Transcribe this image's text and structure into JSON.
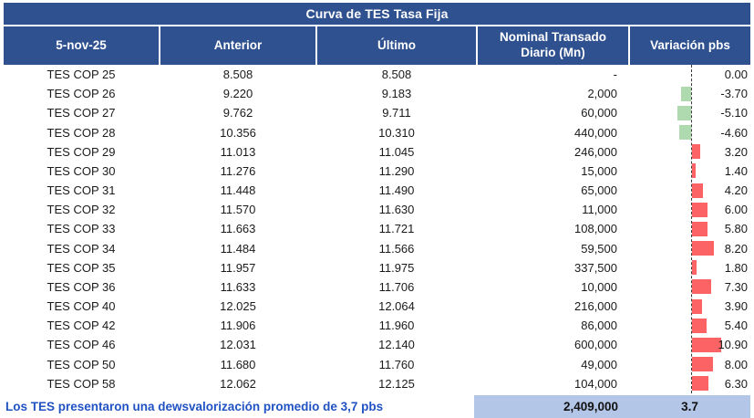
{
  "header": {
    "title": "Curva de TES Tasa Fija",
    "columns": [
      {
        "id": "bond",
        "label": "5-nov-25"
      },
      {
        "id": "anterior",
        "label": "Anterior"
      },
      {
        "id": "ultimo",
        "label": "Último"
      },
      {
        "id": "nominal",
        "label": "Nominal Transado Diario (Mn)"
      },
      {
        "id": "variacion",
        "label": "Variación pbs"
      }
    ]
  },
  "rows": [
    {
      "bond": "TES COP 25",
      "anterior": "8.508",
      "ultimo": "8.508",
      "nominal": "-",
      "variacion_label": "0.00",
      "variacion": 0.0
    },
    {
      "bond": "TES COP 26",
      "anterior": "9.220",
      "ultimo": "9.183",
      "nominal": "2,000",
      "variacion_label": "-3.70",
      "variacion": -3.7
    },
    {
      "bond": "TES COP 27",
      "anterior": "9.762",
      "ultimo": "9.711",
      "nominal": "60,000",
      "variacion_label": "-5.10",
      "variacion": -5.1
    },
    {
      "bond": "TES COP 28",
      "anterior": "10.356",
      "ultimo": "10.310",
      "nominal": "440,000",
      "variacion_label": "-4.60",
      "variacion": -4.6
    },
    {
      "bond": "TES COP 29",
      "anterior": "11.013",
      "ultimo": "11.045",
      "nominal": "246,000",
      "variacion_label": "3.20",
      "variacion": 3.2
    },
    {
      "bond": "TES COP 30",
      "anterior": "11.276",
      "ultimo": "11.290",
      "nominal": "15,000",
      "variacion_label": "1.40",
      "variacion": 1.4
    },
    {
      "bond": "TES COP 31",
      "anterior": "11.448",
      "ultimo": "11.490",
      "nominal": "65,000",
      "variacion_label": "4.20",
      "variacion": 4.2
    },
    {
      "bond": "TES COP 32",
      "anterior": "11.570",
      "ultimo": "11.630",
      "nominal": "11,000",
      "variacion_label": "6.00",
      "variacion": 6.0
    },
    {
      "bond": "TES COP 33",
      "anterior": "11.663",
      "ultimo": "11.721",
      "nominal": "108,000",
      "variacion_label": "5.80",
      "variacion": 5.8
    },
    {
      "bond": "TES COP 34",
      "anterior": "11.484",
      "ultimo": "11.566",
      "nominal": "59,500",
      "variacion_label": "8.20",
      "variacion": 8.2
    },
    {
      "bond": "TES COP 35",
      "anterior": "11.957",
      "ultimo": "11.975",
      "nominal": "337,500",
      "variacion_label": "1.80",
      "variacion": 1.8
    },
    {
      "bond": "TES COP 36",
      "anterior": "11.633",
      "ultimo": "11.706",
      "nominal": "10,000",
      "variacion_label": "7.30",
      "variacion": 7.3
    },
    {
      "bond": "TES COP 40",
      "anterior": "12.025",
      "ultimo": "12.064",
      "nominal": "216,000",
      "variacion_label": "3.90",
      "variacion": 3.9
    },
    {
      "bond": "TES COP 42",
      "anterior": "11.906",
      "ultimo": "11.960",
      "nominal": "86,000",
      "variacion_label": "5.40",
      "variacion": 5.4
    },
    {
      "bond": "TES COP 46",
      "anterior": "12.031",
      "ultimo": "12.140",
      "nominal": "600,000",
      "variacion_label": "10.90",
      "variacion": 10.9
    },
    {
      "bond": "TES COP 50",
      "anterior": "11.680",
      "ultimo": "11.760",
      "nominal": "49,000",
      "variacion_label": "8.00",
      "variacion": 8.0
    },
    {
      "bond": "TES COP 58",
      "anterior": "12.062",
      "ultimo": "12.125",
      "nominal": "104,000",
      "variacion_label": "6.30",
      "variacion": 6.3
    }
  ],
  "footer": {
    "note": "Los TES presentaron una dewsvalorización promedio de 3,7 pbs",
    "total_nominal": "2,409,000",
    "avg_variacion": "3.7"
  },
  "colors": {
    "header_bg": "#2F5190",
    "bar_positive": "#FB6364",
    "bar_negative": "#AFD9AF",
    "footer_band_bg": "#B4C6E7",
    "footer_note_text": "#2052C4"
  },
  "chart_data": {
    "type": "table",
    "title": "Curva de TES Tasa Fija",
    "date_label": "5-nov-25",
    "columns": [
      "5-nov-25",
      "Anterior",
      "Último",
      "Nominal Transado Diario (Mn)",
      "Variación pbs"
    ],
    "rows": [
      [
        "TES COP 25",
        8.508,
        8.508,
        null,
        0.0
      ],
      [
        "TES COP 26",
        9.22,
        9.183,
        2000,
        -3.7
      ],
      [
        "TES COP 27",
        9.762,
        9.711,
        60000,
        -5.1
      ],
      [
        "TES COP 28",
        10.356,
        10.31,
        440000,
        -4.6
      ],
      [
        "TES COP 29",
        11.013,
        11.045,
        246000,
        3.2
      ],
      [
        "TES COP 30",
        11.276,
        11.29,
        15000,
        1.4
      ],
      [
        "TES COP 31",
        11.448,
        11.49,
        65000,
        4.2
      ],
      [
        "TES COP 32",
        11.57,
        11.63,
        11000,
        6.0
      ],
      [
        "TES COP 33",
        11.663,
        11.721,
        108000,
        5.8
      ],
      [
        "TES COP 34",
        11.484,
        11.566,
        59500,
        8.2
      ],
      [
        "TES COP 35",
        11.957,
        11.975,
        337500,
        1.8
      ],
      [
        "TES COP 36",
        11.633,
        11.706,
        10000,
        7.3
      ],
      [
        "TES COP 40",
        12.025,
        12.064,
        216000,
        3.9
      ],
      [
        "TES COP 42",
        11.906,
        11.96,
        86000,
        5.4
      ],
      [
        "TES COP 46",
        12.031,
        12.14,
        600000,
        10.9
      ],
      [
        "TES COP 50",
        11.68,
        11.76,
        49000,
        8.0
      ],
      [
        "TES COP 58",
        12.062,
        12.125,
        104000,
        6.3
      ]
    ],
    "totals": {
      "nominal_total": 2409000,
      "variacion_promedio_pbs": 3.7
    },
    "embedded_chart": {
      "type": "bar",
      "orientation": "horizontal",
      "column": "Variación pbs",
      "zero_axis": "dashed vertical line",
      "positive_color": "#FB6364",
      "negative_color": "#AFD9AF",
      "approx_range": [
        -5.1,
        10.9
      ]
    }
  }
}
